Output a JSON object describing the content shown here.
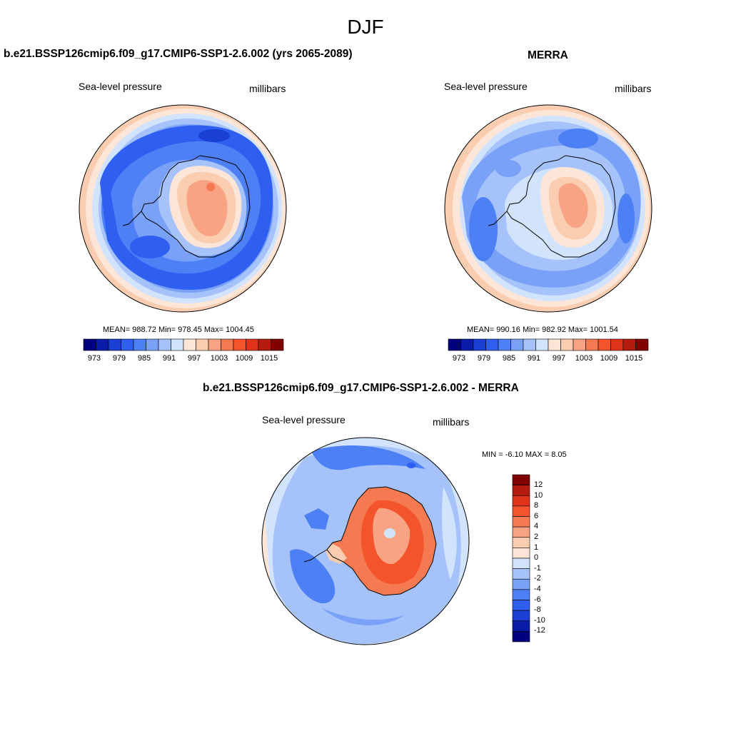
{
  "title": "DJF",
  "colors": {
    "seq": [
      "#00007f",
      "#0a1ba8",
      "#1a3fd3",
      "#2e5ff0",
      "#4d80f5",
      "#7aa1f8",
      "#a6c2fb",
      "#d2e4fd",
      "#fde6d7",
      "#fbcdb0",
      "#f8a484",
      "#f57a52",
      "#f3542c",
      "#e0341a",
      "#b41d0e",
      "#800000"
    ],
    "coast": "#000000"
  },
  "panels": [
    {
      "id": "model",
      "title": "b.e21.BSSP126cmip6.f09_g17.CMIP6-SSP1-2.6.002 (yrs 2065-2089)",
      "left_label": "Sea-level pressure",
      "right_label": "millibars",
      "stats": "MEAN= 988.72  Min= 978.45  Max= 1004.45",
      "colorbar_ticks": [
        "973",
        "979",
        "985",
        "991",
        "997",
        "1003",
        "1009",
        "1015"
      ]
    },
    {
      "id": "obs",
      "title": "MERRA",
      "left_label": "Sea-level pressure",
      "right_label": "millibars",
      "stats": "MEAN= 990.16  Min= 982.92  Max= 1001.54",
      "colorbar_ticks": [
        "973",
        "979",
        "985",
        "991",
        "997",
        "1003",
        "1009",
        "1015"
      ]
    },
    {
      "id": "diff",
      "title": "b.e21.BSSP126cmip6.f09_g17.CMIP6-SSP1-2.6.002 - MERRA",
      "left_label": "Sea-level pressure",
      "right_label": "millibars",
      "stats": "MIN =  -6.10 MAX =   8.05",
      "colorbar_ticks": [
        "12",
        "10",
        "8",
        "6",
        "4",
        "2",
        "1",
        "0",
        "-1",
        "-2",
        "-4",
        "-6",
        "-8",
        "-10",
        "-12"
      ],
      "colorbar_colors": [
        "#800000",
        "#b41d0e",
        "#e0341a",
        "#f3542c",
        "#f57a52",
        "#f8a484",
        "#fbcdb0",
        "#fde6d7",
        "#d2e4fd",
        "#a6c2fb",
        "#7aa1f8",
        "#4d80f5",
        "#2e5ff0",
        "#1a3fd3",
        "#0a1ba8",
        "#00007f"
      ]
    }
  ]
}
